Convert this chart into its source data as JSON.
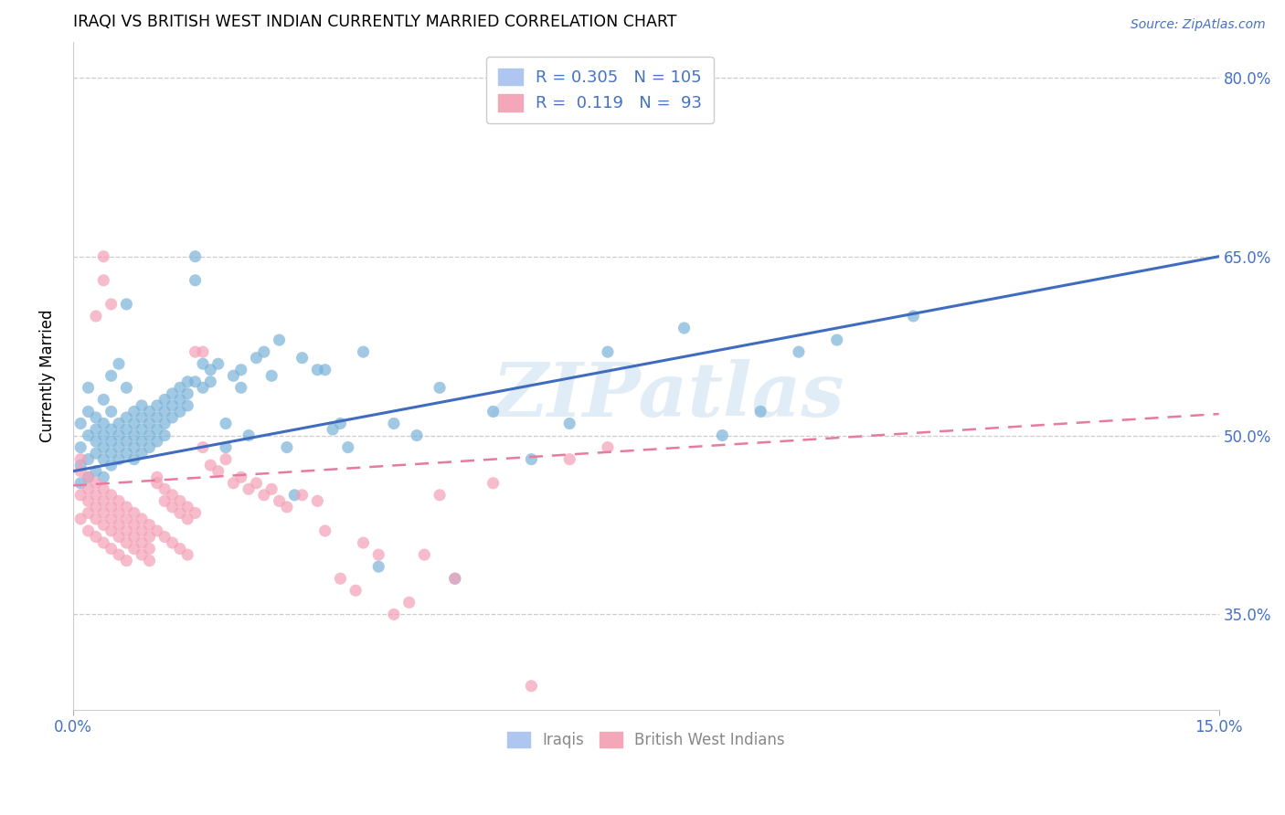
{
  "title": "IRAQI VS BRITISH WEST INDIAN CURRENTLY MARRIED CORRELATION CHART",
  "source": "Source: ZipAtlas.com",
  "ylabel": "Currently Married",
  "ytick_labels": [
    "35.0%",
    "50.0%",
    "65.0%",
    "80.0%"
  ],
  "ytick_values": [
    0.35,
    0.5,
    0.65,
    0.8
  ],
  "xlim": [
    0.0,
    0.15
  ],
  "ylim": [
    0.27,
    0.83
  ],
  "iraqi_color": "#7ab3d9",
  "bwi_color": "#f4a0b5",
  "trendline_iraqi_color": "#3f6cbf",
  "trendline_bwi_color": "#e87aa0",
  "watermark": "ZIPatlas",
  "iraqi_trendline": [
    0.47,
    0.65
  ],
  "bwi_trendline": [
    0.458,
    0.518
  ],
  "iraqi_points": [
    [
      0.001,
      0.49
    ],
    [
      0.001,
      0.51
    ],
    [
      0.001,
      0.475
    ],
    [
      0.001,
      0.46
    ],
    [
      0.002,
      0.5
    ],
    [
      0.002,
      0.48
    ],
    [
      0.002,
      0.465
    ],
    [
      0.002,
      0.52
    ],
    [
      0.002,
      0.54
    ],
    [
      0.003,
      0.495
    ],
    [
      0.003,
      0.505
    ],
    [
      0.003,
      0.485
    ],
    [
      0.003,
      0.47
    ],
    [
      0.003,
      0.515
    ],
    [
      0.004,
      0.5
    ],
    [
      0.004,
      0.48
    ],
    [
      0.004,
      0.465
    ],
    [
      0.004,
      0.51
    ],
    [
      0.004,
      0.49
    ],
    [
      0.004,
      0.53
    ],
    [
      0.005,
      0.495
    ],
    [
      0.005,
      0.475
    ],
    [
      0.005,
      0.505
    ],
    [
      0.005,
      0.485
    ],
    [
      0.005,
      0.52
    ],
    [
      0.005,
      0.55
    ],
    [
      0.006,
      0.5
    ],
    [
      0.006,
      0.48
    ],
    [
      0.006,
      0.51
    ],
    [
      0.006,
      0.56
    ],
    [
      0.006,
      0.49
    ],
    [
      0.007,
      0.505
    ],
    [
      0.007,
      0.485
    ],
    [
      0.007,
      0.515
    ],
    [
      0.007,
      0.495
    ],
    [
      0.007,
      0.54
    ],
    [
      0.007,
      0.61
    ],
    [
      0.008,
      0.5
    ],
    [
      0.008,
      0.52
    ],
    [
      0.008,
      0.49
    ],
    [
      0.008,
      0.51
    ],
    [
      0.008,
      0.48
    ],
    [
      0.009,
      0.515
    ],
    [
      0.009,
      0.495
    ],
    [
      0.009,
      0.505
    ],
    [
      0.009,
      0.525
    ],
    [
      0.009,
      0.485
    ],
    [
      0.01,
      0.52
    ],
    [
      0.01,
      0.5
    ],
    [
      0.01,
      0.51
    ],
    [
      0.01,
      0.49
    ],
    [
      0.011,
      0.525
    ],
    [
      0.011,
      0.505
    ],
    [
      0.011,
      0.515
    ],
    [
      0.011,
      0.495
    ],
    [
      0.012,
      0.53
    ],
    [
      0.012,
      0.51
    ],
    [
      0.012,
      0.52
    ],
    [
      0.012,
      0.5
    ],
    [
      0.013,
      0.535
    ],
    [
      0.013,
      0.515
    ],
    [
      0.013,
      0.525
    ],
    [
      0.014,
      0.54
    ],
    [
      0.014,
      0.52
    ],
    [
      0.014,
      0.53
    ],
    [
      0.015,
      0.545
    ],
    [
      0.015,
      0.525
    ],
    [
      0.015,
      0.535
    ],
    [
      0.016,
      0.63
    ],
    [
      0.016,
      0.65
    ],
    [
      0.016,
      0.545
    ],
    [
      0.017,
      0.54
    ],
    [
      0.017,
      0.56
    ],
    [
      0.018,
      0.545
    ],
    [
      0.018,
      0.555
    ],
    [
      0.019,
      0.56
    ],
    [
      0.02,
      0.49
    ],
    [
      0.02,
      0.51
    ],
    [
      0.021,
      0.55
    ],
    [
      0.022,
      0.555
    ],
    [
      0.022,
      0.54
    ],
    [
      0.023,
      0.5
    ],
    [
      0.024,
      0.565
    ],
    [
      0.025,
      0.57
    ],
    [
      0.026,
      0.55
    ],
    [
      0.027,
      0.58
    ],
    [
      0.028,
      0.49
    ],
    [
      0.029,
      0.45
    ],
    [
      0.03,
      0.565
    ],
    [
      0.032,
      0.555
    ],
    [
      0.033,
      0.555
    ],
    [
      0.034,
      0.505
    ],
    [
      0.035,
      0.51
    ],
    [
      0.036,
      0.49
    ],
    [
      0.038,
      0.57
    ],
    [
      0.04,
      0.39
    ],
    [
      0.042,
      0.51
    ],
    [
      0.045,
      0.5
    ],
    [
      0.048,
      0.54
    ],
    [
      0.05,
      0.38
    ],
    [
      0.055,
      0.52
    ],
    [
      0.06,
      0.48
    ],
    [
      0.065,
      0.51
    ],
    [
      0.07,
      0.57
    ],
    [
      0.08,
      0.59
    ],
    [
      0.085,
      0.5
    ],
    [
      0.09,
      0.52
    ],
    [
      0.095,
      0.57
    ],
    [
      0.1,
      0.58
    ],
    [
      0.11,
      0.6
    ]
  ],
  "bwi_points": [
    [
      0.001,
      0.47
    ],
    [
      0.001,
      0.45
    ],
    [
      0.001,
      0.43
    ],
    [
      0.001,
      0.48
    ],
    [
      0.002,
      0.465
    ],
    [
      0.002,
      0.445
    ],
    [
      0.002,
      0.455
    ],
    [
      0.002,
      0.435
    ],
    [
      0.002,
      0.42
    ],
    [
      0.003,
      0.46
    ],
    [
      0.003,
      0.44
    ],
    [
      0.003,
      0.45
    ],
    [
      0.003,
      0.43
    ],
    [
      0.003,
      0.415
    ],
    [
      0.003,
      0.6
    ],
    [
      0.004,
      0.455
    ],
    [
      0.004,
      0.435
    ],
    [
      0.004,
      0.445
    ],
    [
      0.004,
      0.425
    ],
    [
      0.004,
      0.41
    ],
    [
      0.004,
      0.65
    ],
    [
      0.004,
      0.63
    ],
    [
      0.005,
      0.45
    ],
    [
      0.005,
      0.43
    ],
    [
      0.005,
      0.44
    ],
    [
      0.005,
      0.42
    ],
    [
      0.005,
      0.405
    ],
    [
      0.005,
      0.61
    ],
    [
      0.006,
      0.445
    ],
    [
      0.006,
      0.425
    ],
    [
      0.006,
      0.435
    ],
    [
      0.006,
      0.415
    ],
    [
      0.006,
      0.4
    ],
    [
      0.007,
      0.44
    ],
    [
      0.007,
      0.42
    ],
    [
      0.007,
      0.43
    ],
    [
      0.007,
      0.41
    ],
    [
      0.007,
      0.395
    ],
    [
      0.008,
      0.435
    ],
    [
      0.008,
      0.415
    ],
    [
      0.008,
      0.425
    ],
    [
      0.008,
      0.405
    ],
    [
      0.009,
      0.43
    ],
    [
      0.009,
      0.41
    ],
    [
      0.009,
      0.42
    ],
    [
      0.009,
      0.4
    ],
    [
      0.01,
      0.425
    ],
    [
      0.01,
      0.405
    ],
    [
      0.01,
      0.415
    ],
    [
      0.01,
      0.395
    ],
    [
      0.011,
      0.465
    ],
    [
      0.011,
      0.46
    ],
    [
      0.011,
      0.42
    ],
    [
      0.012,
      0.455
    ],
    [
      0.012,
      0.445
    ],
    [
      0.012,
      0.415
    ],
    [
      0.013,
      0.45
    ],
    [
      0.013,
      0.44
    ],
    [
      0.013,
      0.41
    ],
    [
      0.014,
      0.445
    ],
    [
      0.014,
      0.435
    ],
    [
      0.014,
      0.405
    ],
    [
      0.015,
      0.44
    ],
    [
      0.015,
      0.43
    ],
    [
      0.015,
      0.4
    ],
    [
      0.016,
      0.435
    ],
    [
      0.016,
      0.57
    ],
    [
      0.017,
      0.57
    ],
    [
      0.017,
      0.49
    ],
    [
      0.018,
      0.475
    ],
    [
      0.019,
      0.47
    ],
    [
      0.02,
      0.48
    ],
    [
      0.021,
      0.46
    ],
    [
      0.022,
      0.465
    ],
    [
      0.023,
      0.455
    ],
    [
      0.024,
      0.46
    ],
    [
      0.025,
      0.45
    ],
    [
      0.026,
      0.455
    ],
    [
      0.027,
      0.445
    ],
    [
      0.028,
      0.44
    ],
    [
      0.03,
      0.45
    ],
    [
      0.032,
      0.445
    ],
    [
      0.033,
      0.42
    ],
    [
      0.035,
      0.38
    ],
    [
      0.037,
      0.37
    ],
    [
      0.038,
      0.41
    ],
    [
      0.04,
      0.4
    ],
    [
      0.042,
      0.35
    ],
    [
      0.044,
      0.36
    ],
    [
      0.046,
      0.4
    ],
    [
      0.048,
      0.45
    ],
    [
      0.05,
      0.38
    ],
    [
      0.055,
      0.46
    ],
    [
      0.06,
      0.29
    ],
    [
      0.065,
      0.48
    ],
    [
      0.07,
      0.49
    ]
  ]
}
